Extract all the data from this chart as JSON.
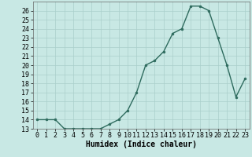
{
  "x": [
    0,
    1,
    2,
    3,
    4,
    5,
    6,
    7,
    8,
    9,
    10,
    11,
    12,
    13,
    14,
    15,
    16,
    17,
    18,
    19,
    20,
    21,
    22,
    23
  ],
  "y": [
    14,
    14,
    14,
    13,
    13,
    13,
    13,
    13,
    13.5,
    14,
    15,
    17,
    20,
    20.5,
    21.5,
    23.5,
    24,
    26.5,
    26.5,
    26,
    23,
    20,
    16.5,
    18.5
  ],
  "xlabel": "Humidex (Indice chaleur)",
  "line_color": "#2e6b5e",
  "bg_color": "#c8e8e4",
  "grid_color": "#aacfcb",
  "ylim": [
    13,
    27
  ],
  "xlim": [
    -0.5,
    23.5
  ],
  "yticks": [
    13,
    14,
    15,
    16,
    17,
    18,
    19,
    20,
    21,
    22,
    23,
    24,
    25,
    26
  ],
  "xticks": [
    0,
    1,
    2,
    3,
    4,
    5,
    6,
    7,
    8,
    9,
    10,
    11,
    12,
    13,
    14,
    15,
    16,
    17,
    18,
    19,
    20,
    21,
    22,
    23
  ],
  "tick_fontsize": 6.0,
  "xlabel_fontsize": 7.0
}
